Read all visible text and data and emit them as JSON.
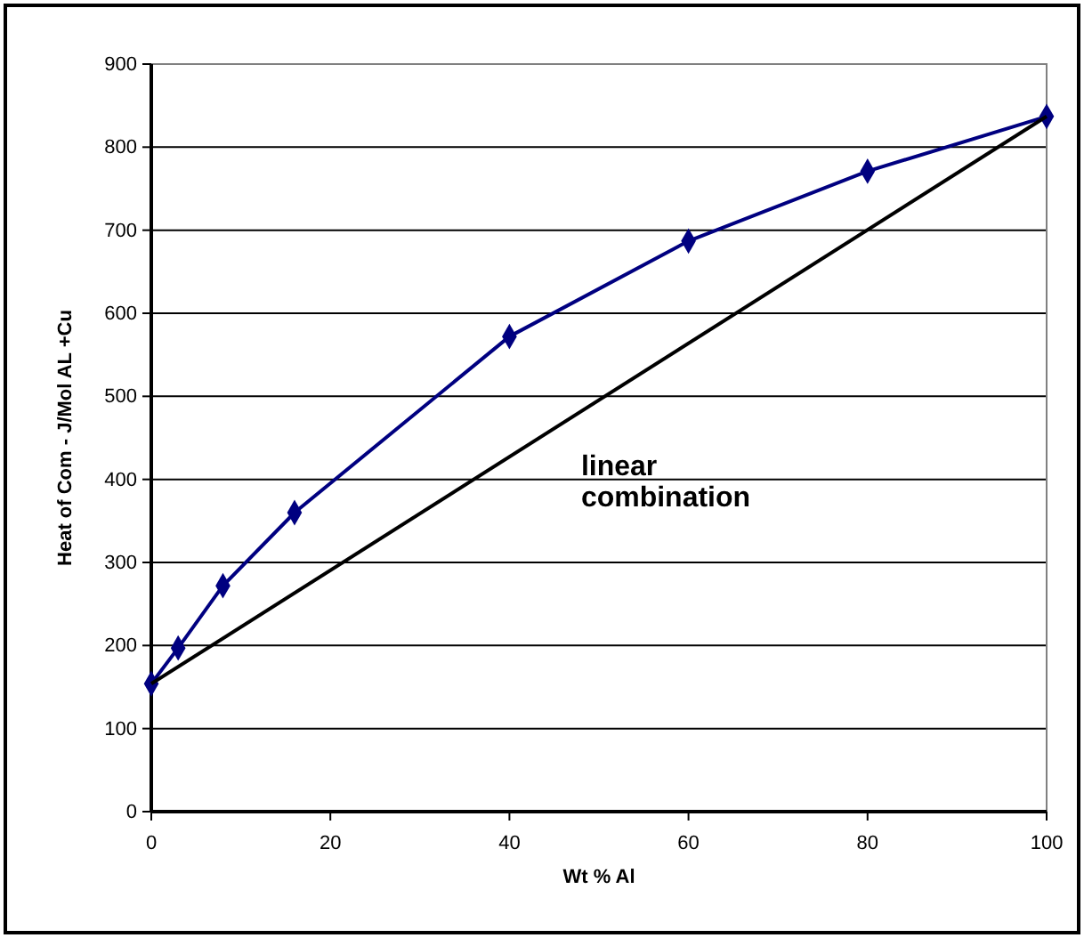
{
  "chart_data": {
    "type": "line",
    "xlabel": "Wt % Al",
    "ylabel": "Heat of Com - J/Mol AL +Cu",
    "series": [
      {
        "color": "#000080",
        "x": [
          0,
          3,
          8,
          16,
          40,
          60,
          80,
          100
        ],
        "values": [
          154,
          197,
          272,
          360,
          572,
          687,
          771,
          837
        ],
        "marker": "diamond"
      },
      {
        "color": "#000000",
        "x": [
          0,
          100
        ],
        "values": [
          154,
          837
        ],
        "marker": "none"
      }
    ],
    "annotations": [
      "linear combination"
    ],
    "xlim": [
      0,
      100
    ],
    "xticks": [
      0,
      20,
      40,
      60,
      80,
      100
    ],
    "ylim": [
      0,
      900
    ],
    "yticks": [
      0,
      100,
      200,
      300,
      400,
      500,
      600,
      700,
      800,
      900
    ],
    "grid": "y",
    "line_style": "solid"
  }
}
